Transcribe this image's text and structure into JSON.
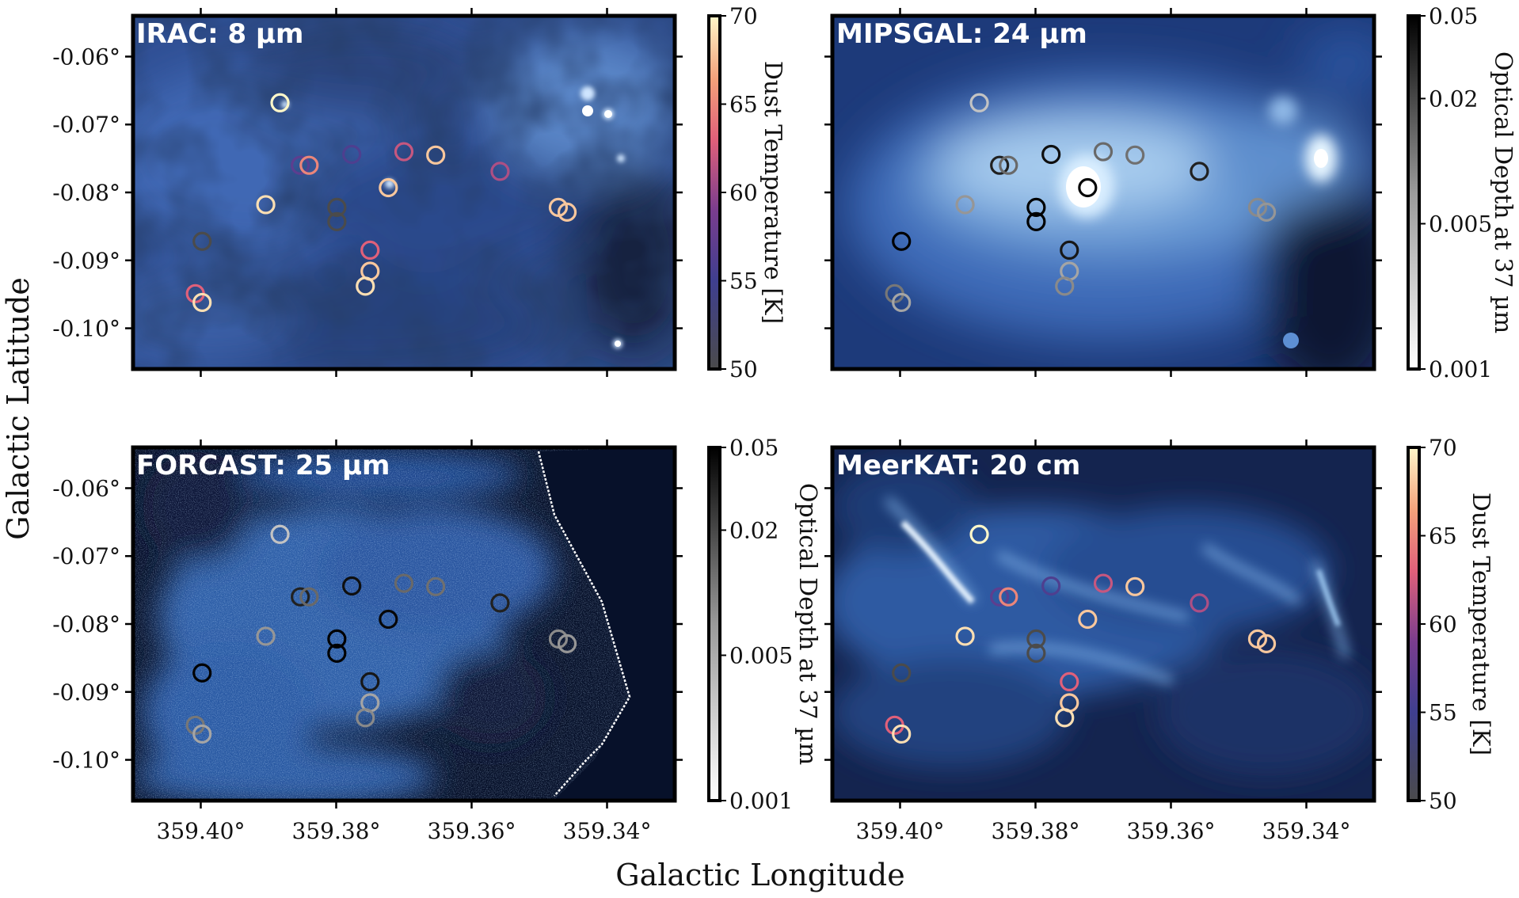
{
  "figure": {
    "xlabel": "Galactic Longitude",
    "ylabel": "Galactic Latitude"
  },
  "chart_data": [
    {
      "type": "scatter",
      "panel": "top-left",
      "title": "IRAC: 8 µm",
      "xlim": [
        359.41,
        359.33
      ],
      "ylim": [
        -0.106,
        -0.054
      ],
      "x_ticks": [
        "359.40°",
        "359.38°",
        "359.36°",
        "359.34°"
      ],
      "y_ticks": [
        "-0.06°",
        "-0.07°",
        "-0.08°",
        "-0.09°",
        "-0.10°"
      ],
      "show_x_tick_labels": false,
      "show_y_tick_labels": true,
      "background": "blue-cubehelix",
      "colorbar": {
        "label": "Dust Temperature [K]",
        "ticks": [
          "70",
          "65",
          "60",
          "55",
          "50"
        ],
        "scale": "temperature"
      },
      "marker_color_by": "temperature"
    },
    {
      "type": "scatter",
      "panel": "top-right",
      "title": "MIPSGAL: 24 µm",
      "xlim": [
        359.41,
        359.33
      ],
      "ylim": [
        -0.106,
        -0.054
      ],
      "x_ticks": [
        "359.40°",
        "359.38°",
        "359.36°",
        "359.34°"
      ],
      "y_ticks": [
        "-0.06°",
        "-0.07°",
        "-0.08°",
        "-0.09°",
        "-0.10°"
      ],
      "show_x_tick_labels": false,
      "show_y_tick_labels": false,
      "background": "blue-cubehelix",
      "colorbar": {
        "label": "Optical Depth at 37 µm",
        "ticks": [
          "0.05",
          "0.02",
          "0.005",
          "0.001"
        ],
        "scale": "opacity"
      },
      "marker_color_by": "opacity"
    },
    {
      "type": "scatter",
      "panel": "bottom-left",
      "title": "FORCAST: 25 µm",
      "xlim": [
        359.41,
        359.33
      ],
      "ylim": [
        -0.106,
        -0.054
      ],
      "x_ticks": [
        "359.40°",
        "359.38°",
        "359.36°",
        "359.34°"
      ],
      "y_ticks": [
        "-0.06°",
        "-0.07°",
        "-0.08°",
        "-0.09°",
        "-0.10°"
      ],
      "show_x_tick_labels": true,
      "show_y_tick_labels": true,
      "background": "blue-noise",
      "colorbar": {
        "label": "Optical Depth at 37 µm",
        "ticks": [
          "0.05",
          "0.02",
          "0.005",
          "0.001"
        ],
        "scale": "opacity"
      },
      "marker_color_by": "opacity"
    },
    {
      "type": "scatter",
      "panel": "bottom-right",
      "title": "MeerKAT: 20 cm",
      "xlim": [
        359.41,
        359.33
      ],
      "ylim": [
        -0.106,
        -0.054
      ],
      "x_ticks": [
        "359.40°",
        "359.38°",
        "359.36°",
        "359.34°"
      ],
      "y_ticks": [
        "-0.06°",
        "-0.07°",
        "-0.08°",
        "-0.09°",
        "-0.10°"
      ],
      "show_x_tick_labels": true,
      "show_y_tick_labels": false,
      "background": "blue-filament",
      "colorbar": {
        "label": "Dust Temperature [K]",
        "ticks": [
          "70",
          "65",
          "60",
          "55",
          "50"
        ],
        "scale": "temperature"
      },
      "marker_color_by": "temperature"
    }
  ],
  "sources": [
    {
      "l": 359.3883,
      "b": -0.0668,
      "temperature": 70,
      "opacity": 0.0025
    },
    {
      "l": 359.3853,
      "b": -0.076,
      "temperature": 57,
      "opacity": 0.03
    },
    {
      "l": 359.384,
      "b": -0.076,
      "temperature": 65,
      "opacity": 0.01
    },
    {
      "l": 359.3777,
      "b": -0.0744,
      "temperature": 56,
      "opacity": 0.04
    },
    {
      "l": 359.37,
      "b": -0.074,
      "temperature": 62,
      "opacity": 0.01
    },
    {
      "l": 359.3653,
      "b": -0.0745,
      "temperature": 68,
      "opacity": 0.009
    },
    {
      "l": 359.3558,
      "b": -0.0769,
      "temperature": 61,
      "opacity": 0.03
    },
    {
      "l": 359.3723,
      "b": -0.0793,
      "temperature": 68,
      "opacity": 0.045
    },
    {
      "l": 359.3904,
      "b": -0.0818,
      "temperature": 69,
      "opacity": 0.005
    },
    {
      "l": 359.3799,
      "b": -0.0822,
      "temperature": 50,
      "opacity": 0.05
    },
    {
      "l": 359.3799,
      "b": -0.0843,
      "temperature": 50,
      "opacity": 0.05
    },
    {
      "l": 359.375,
      "b": -0.0885,
      "temperature": 63,
      "opacity": 0.035
    },
    {
      "l": 359.375,
      "b": -0.0916,
      "temperature": 68,
      "opacity": 0.004
    },
    {
      "l": 359.3757,
      "b": -0.0938,
      "temperature": 69,
      "opacity": 0.006
    },
    {
      "l": 359.3998,
      "b": -0.0872,
      "temperature": 50,
      "opacity": 0.05
    },
    {
      "l": 359.4008,
      "b": -0.0949,
      "temperature": 63,
      "opacity": 0.008
    },
    {
      "l": 359.3998,
      "b": -0.0962,
      "temperature": 69,
      "opacity": 0.004
    },
    {
      "l": 359.3472,
      "b": -0.0822,
      "temperature": 68,
      "opacity": 0.006
    },
    {
      "l": 359.3459,
      "b": -0.0829,
      "temperature": 68,
      "opacity": 0.005
    }
  ]
}
